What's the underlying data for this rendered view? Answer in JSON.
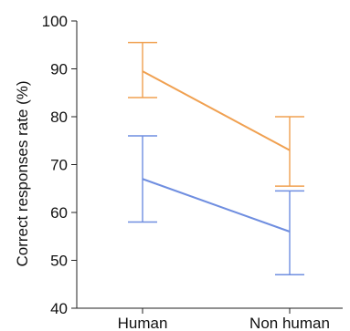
{
  "chart_data": {
    "type": "line",
    "title": "",
    "xlabel": "",
    "ylabel": "Correct responses rate (%)",
    "categories": [
      "Human",
      "Non human"
    ],
    "ylim": [
      40,
      100
    ],
    "yticks": [
      40,
      50,
      60,
      70,
      80,
      90,
      100
    ],
    "grid": false,
    "legend": "none",
    "series": [
      {
        "values": [
          89.5,
          73
        ],
        "error_low": [
          84,
          65.5
        ],
        "error_high": [
          95.5,
          80
        ],
        "color": "#f0a050"
      },
      {
        "values": [
          67,
          56
        ],
        "error_low": [
          58,
          47
        ],
        "error_high": [
          76,
          64.5
        ],
        "color": "#6f8ee0"
      }
    ]
  }
}
